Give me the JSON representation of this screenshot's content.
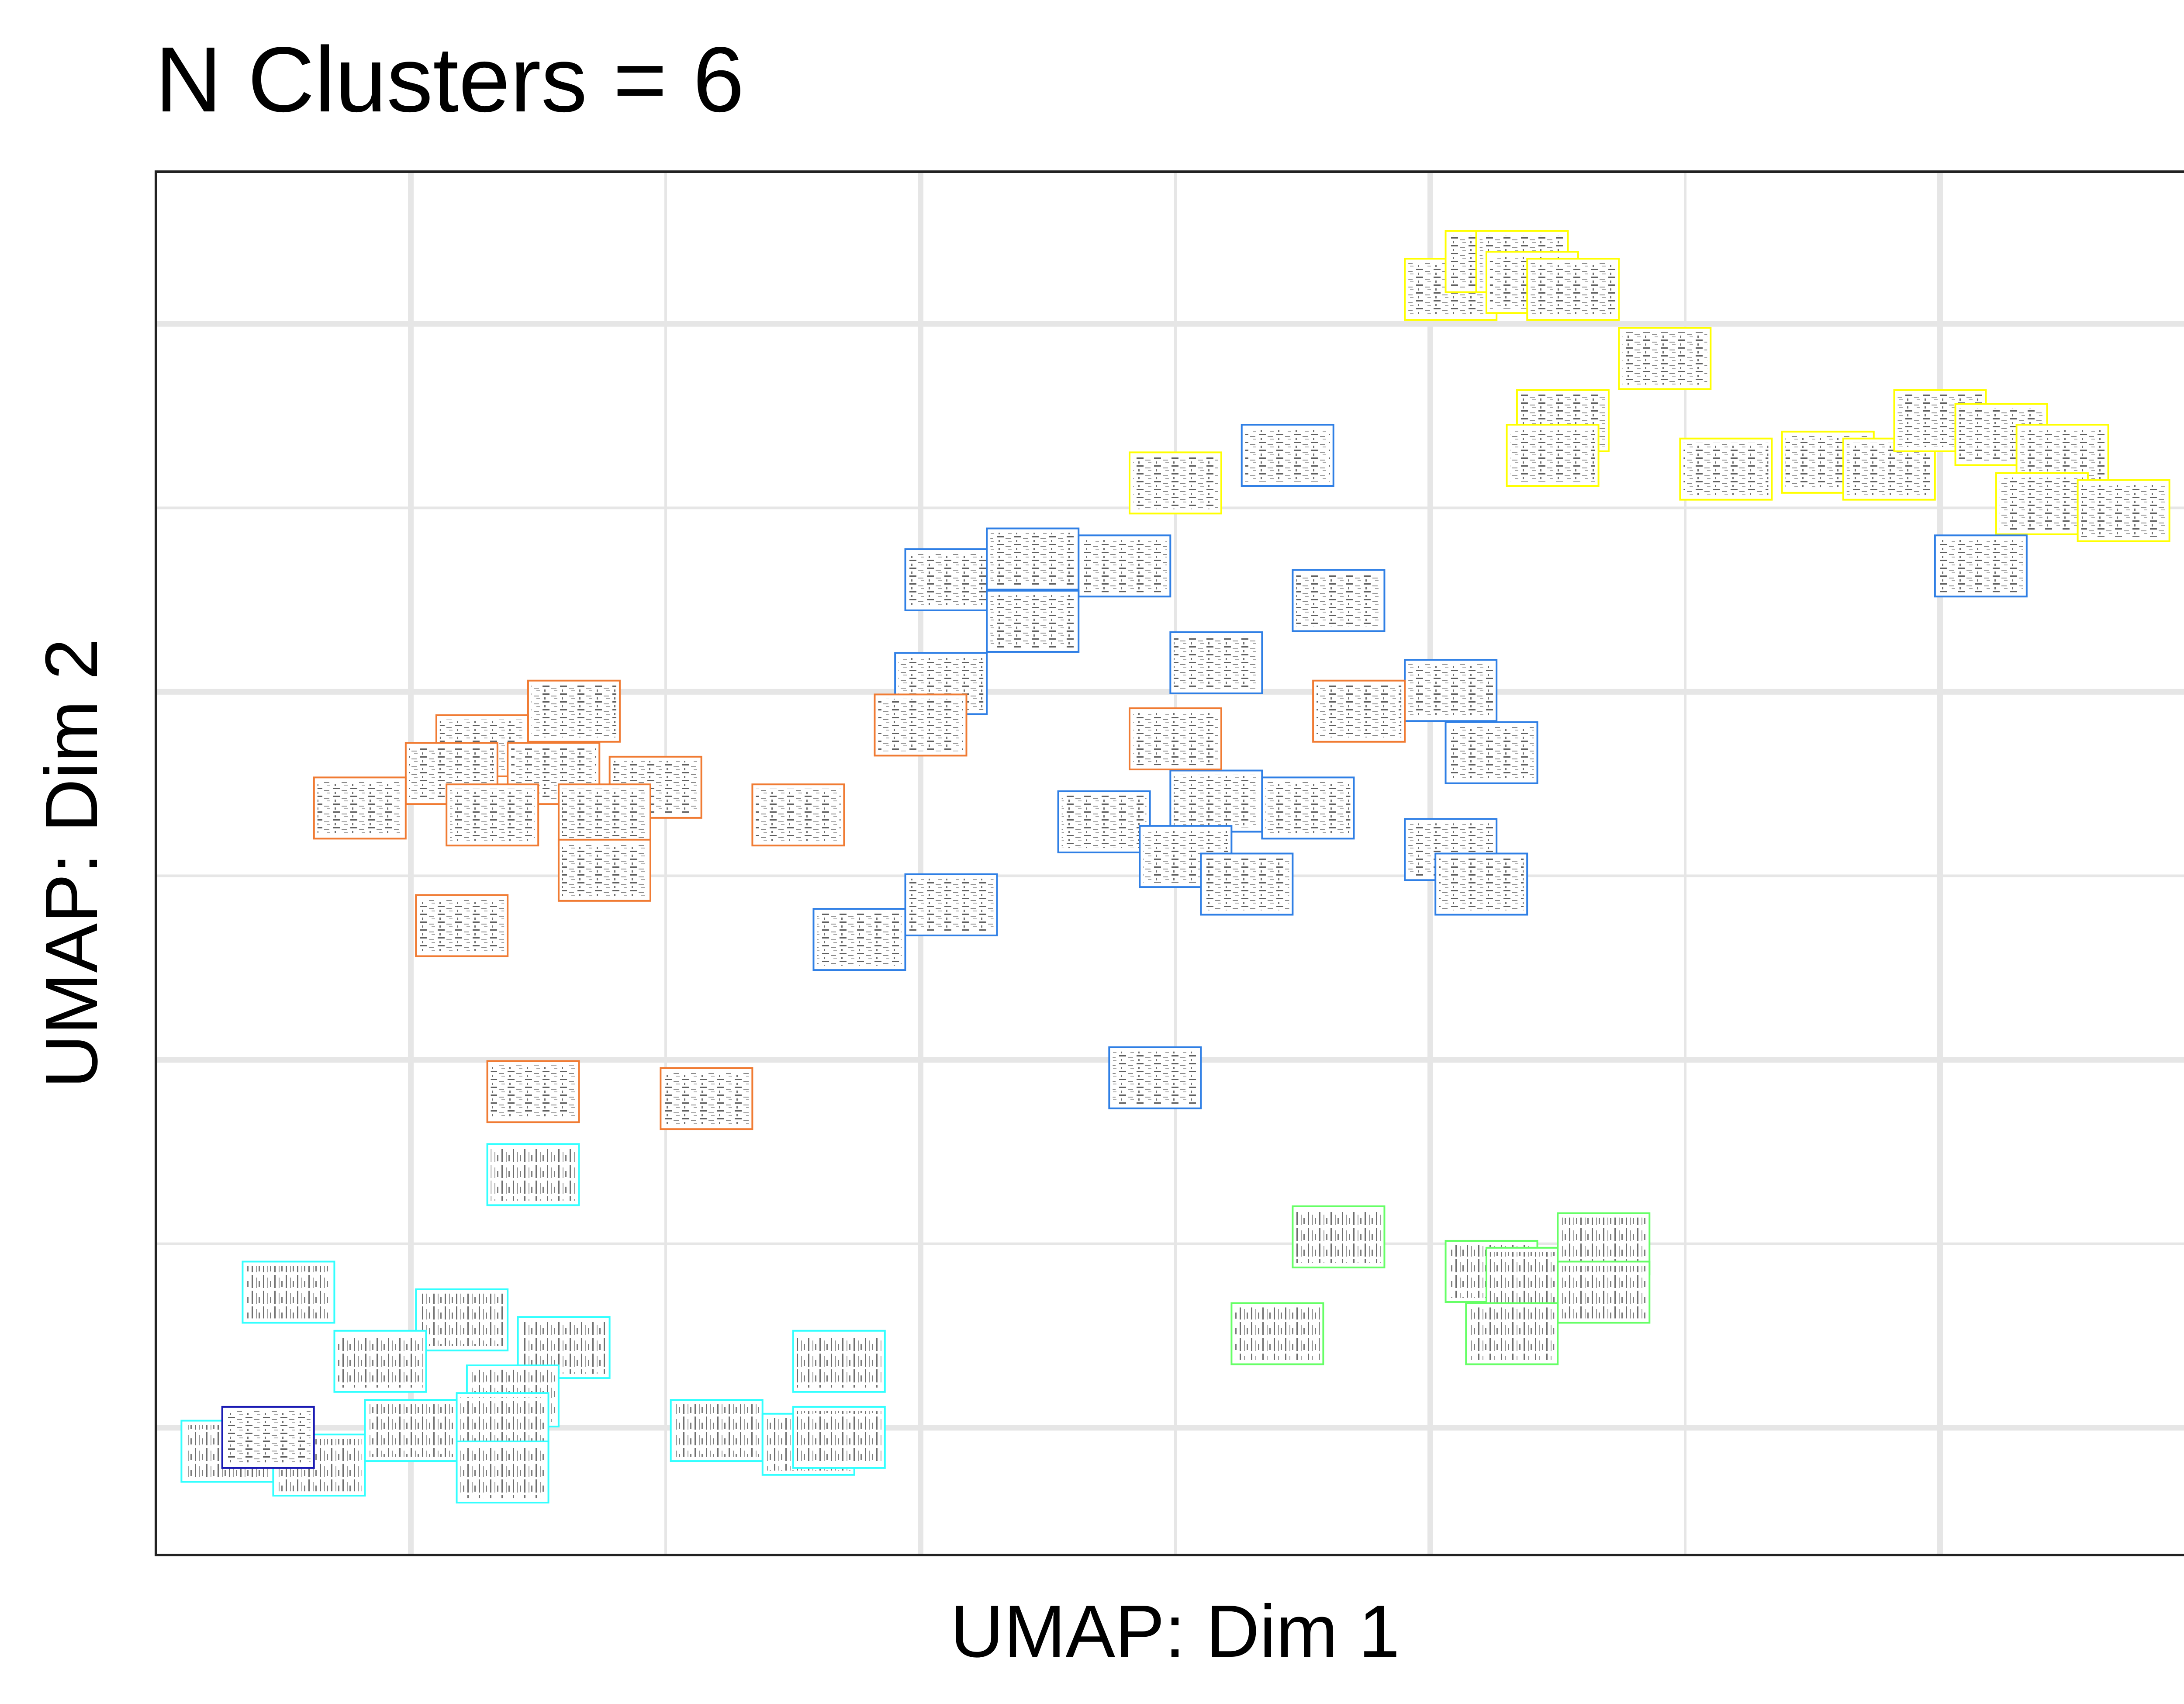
{
  "chart_data": {
    "type": "scatter",
    "title": "N Clusters = 6",
    "xlabel": "UMAP: Dim 1",
    "ylabel": "UMAP: Dim 2",
    "xlim": [
      0,
      100
    ],
    "ylim": [
      0,
      100
    ],
    "grid": true,
    "tick_labels_shown": false,
    "marker": "spectrogram-thumbnail",
    "clusters": [
      {
        "color": "#FFFF00",
        "points": [
          {
            "x": 63.5,
            "y": 91.5
          },
          {
            "x": 65.5,
            "y": 93.5
          },
          {
            "x": 67.0,
            "y": 93.5
          },
          {
            "x": 67.5,
            "y": 92.0
          },
          {
            "x": 69.5,
            "y": 91.5
          },
          {
            "x": 74.0,
            "y": 86.5
          },
          {
            "x": 69.0,
            "y": 82.0
          },
          {
            "x": 68.5,
            "y": 79.5
          },
          {
            "x": 77.0,
            "y": 78.5
          },
          {
            "x": 82.0,
            "y": 79.0
          },
          {
            "x": 85.0,
            "y": 78.5
          },
          {
            "x": 87.5,
            "y": 82.0
          },
          {
            "x": 90.5,
            "y": 81.0
          },
          {
            "x": 93.5,
            "y": 79.5
          },
          {
            "x": 92.5,
            "y": 76.0
          },
          {
            "x": 96.5,
            "y": 75.5
          },
          {
            "x": 50.0,
            "y": 77.5
          }
        ]
      },
      {
        "color": "#2F7FE5",
        "points": [
          {
            "x": 55.5,
            "y": 79.5
          },
          {
            "x": 39.0,
            "y": 70.5
          },
          {
            "x": 43.0,
            "y": 72.0
          },
          {
            "x": 47.5,
            "y": 71.5
          },
          {
            "x": 43.0,
            "y": 67.5
          },
          {
            "x": 38.5,
            "y": 63.0
          },
          {
            "x": 52.0,
            "y": 64.5
          },
          {
            "x": 58.0,
            "y": 69.0
          },
          {
            "x": 63.5,
            "y": 62.5
          },
          {
            "x": 65.5,
            "y": 58.0
          },
          {
            "x": 52.0,
            "y": 54.5
          },
          {
            "x": 56.5,
            "y": 54.0
          },
          {
            "x": 46.5,
            "y": 53.0
          },
          {
            "x": 50.5,
            "y": 50.5
          },
          {
            "x": 53.5,
            "y": 48.5
          },
          {
            "x": 63.5,
            "y": 51.0
          },
          {
            "x": 65.0,
            "y": 48.5
          },
          {
            "x": 39.0,
            "y": 47.0
          },
          {
            "x": 34.5,
            "y": 44.5
          },
          {
            "x": 49.0,
            "y": 34.5
          },
          {
            "x": 89.5,
            "y": 71.5
          }
        ]
      },
      {
        "color": "#F07B33",
        "points": [
          {
            "x": 20.5,
            "y": 61.0
          },
          {
            "x": 16.0,
            "y": 58.5
          },
          {
            "x": 14.5,
            "y": 56.5
          },
          {
            "x": 10.0,
            "y": 54.0
          },
          {
            "x": 19.5,
            "y": 56.5
          },
          {
            "x": 24.5,
            "y": 55.5
          },
          {
            "x": 16.5,
            "y": 53.5
          },
          {
            "x": 22.0,
            "y": 53.5
          },
          {
            "x": 31.5,
            "y": 53.5
          },
          {
            "x": 22.0,
            "y": 49.5
          },
          {
            "x": 15.0,
            "y": 45.5
          },
          {
            "x": 37.5,
            "y": 60.0
          },
          {
            "x": 50.0,
            "y": 59.0
          },
          {
            "x": 59.0,
            "y": 61.0
          },
          {
            "x": 18.5,
            "y": 33.5
          },
          {
            "x": 27.0,
            "y": 33.0
          }
        ]
      },
      {
        "color": "#66FF66",
        "points": [
          {
            "x": 58.0,
            "y": 23.0
          },
          {
            "x": 65.5,
            "y": 20.5
          },
          {
            "x": 67.5,
            "y": 20.0
          },
          {
            "x": 71.0,
            "y": 22.5
          },
          {
            "x": 71.0,
            "y": 19.0
          },
          {
            "x": 66.5,
            "y": 16.0
          },
          {
            "x": 55.0,
            "y": 16.0
          }
        ]
      },
      {
        "color": "#33FFFF",
        "points": [
          {
            "x": 18.5,
            "y": 27.5
          },
          {
            "x": 6.5,
            "y": 19.0
          },
          {
            "x": 15.0,
            "y": 17.0
          },
          {
            "x": 20.0,
            "y": 15.0
          },
          {
            "x": 11.0,
            "y": 14.0
          },
          {
            "x": 17.5,
            "y": 11.5
          },
          {
            "x": 17.0,
            "y": 9.5
          },
          {
            "x": 12.5,
            "y": 9.0
          },
          {
            "x": 3.5,
            "y": 7.5
          },
          {
            "x": 8.0,
            "y": 6.5
          },
          {
            "x": 17.0,
            "y": 6.0
          },
          {
            "x": 27.5,
            "y": 9.0
          },
          {
            "x": 32.0,
            "y": 8.0
          },
          {
            "x": 33.5,
            "y": 8.5
          },
          {
            "x": 33.5,
            "y": 14.0
          }
        ]
      },
      {
        "color": "#1A1AB3",
        "points": [
          {
            "x": 5.5,
            "y": 8.5
          }
        ]
      }
    ]
  }
}
